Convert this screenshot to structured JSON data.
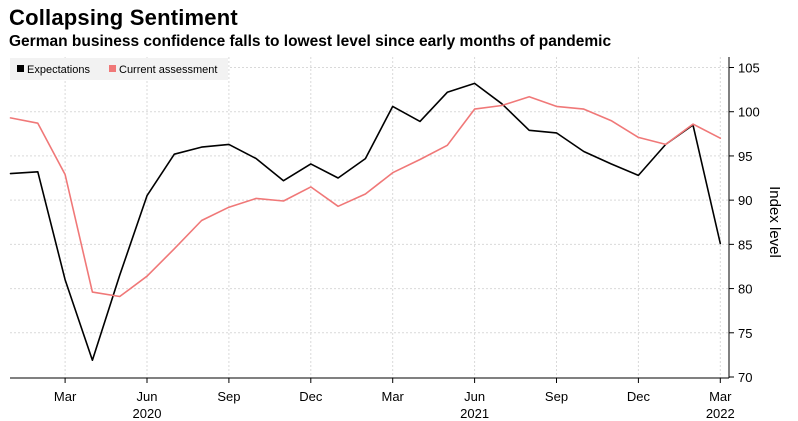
{
  "chart_data": {
    "type": "line",
    "title": "Collapsing Sentiment",
    "subtitle": "German business confidence falls to lowest level since early months of pandemic",
    "xlabel": "",
    "ylabel": "Index level",
    "ylim": [
      70,
      105
    ],
    "yticks": [
      70,
      75,
      80,
      85,
      90,
      95,
      100,
      105
    ],
    "grid": true,
    "legend_position": "top-left",
    "x": [
      "2020-01",
      "2020-02",
      "2020-03",
      "2020-04",
      "2020-05",
      "2020-06",
      "2020-07",
      "2020-08",
      "2020-09",
      "2020-10",
      "2020-11",
      "2020-12",
      "2021-01",
      "2021-02",
      "2021-03",
      "2021-04",
      "2021-05",
      "2021-06",
      "2021-07",
      "2021-08",
      "2021-09",
      "2021-10",
      "2021-11",
      "2021-12",
      "2022-01",
      "2022-02",
      "2022-03"
    ],
    "x_ticks": [
      {
        "index": 2,
        "label": "Mar",
        "year": ""
      },
      {
        "index": 5,
        "label": "Jun",
        "year": "2020"
      },
      {
        "index": 8,
        "label": "Sep",
        "year": ""
      },
      {
        "index": 11,
        "label": "Dec",
        "year": ""
      },
      {
        "index": 14,
        "label": "Mar",
        "year": ""
      },
      {
        "index": 17,
        "label": "Jun",
        "year": "2021"
      },
      {
        "index": 20,
        "label": "Sep",
        "year": ""
      },
      {
        "index": 23,
        "label": "Dec",
        "year": ""
      },
      {
        "index": 26,
        "label": "Mar",
        "year": "2022"
      }
    ],
    "series": [
      {
        "name": "Expectations",
        "color": "#000000",
        "values": [
          93.0,
          93.2,
          81.0,
          71.9,
          81.5,
          90.5,
          95.2,
          96.0,
          96.3,
          94.7,
          92.2,
          94.1,
          92.5,
          94.7,
          100.6,
          98.9,
          102.2,
          103.2,
          100.9,
          97.9,
          97.6,
          95.5,
          94.1,
          92.8,
          96.3,
          98.5,
          85.1
        ]
      },
      {
        "name": "Current assessment",
        "color": "#f07878",
        "values": [
          99.3,
          98.7,
          92.9,
          79.6,
          79.1,
          81.4,
          84.5,
          87.7,
          89.2,
          90.2,
          89.9,
          91.5,
          89.3,
          90.7,
          93.1,
          94.6,
          96.2,
          100.3,
          100.7,
          101.7,
          100.6,
          100.3,
          99.0,
          97.1,
          96.3,
          98.6,
          97.0
        ]
      }
    ]
  }
}
